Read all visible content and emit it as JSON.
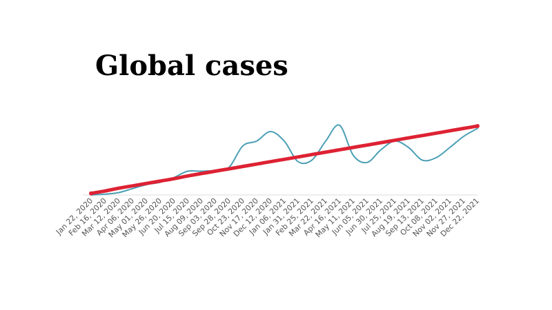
{
  "chart_data": {
    "type": "line",
    "title": "Global cases",
    "xlabel": "",
    "ylabel": "",
    "grid": false,
    "legend": "none",
    "y_axis_visible": false,
    "ylim": [
      0,
      100
    ],
    "categories": [
      "Jan 22, 2020",
      "Feb 16, 2020",
      "Mar 12, 2020",
      "Apr 06, 2020",
      "May 01, 2020",
      "May 26, 2020",
      "Jun 20, 2020",
      "Jul 15, 2020",
      "Aug 09, 2020",
      "Sep 03, 2020",
      "Sep 28, 2020",
      "Oct 23, 2020",
      "Nov 17, 2020",
      "Dec 12, 2020",
      "Jan 06, 2021",
      "Jan 31, 2021",
      "Feb 25, 2021",
      "Mar 22, 2021",
      "Apr 16, 2021",
      "May 11, 2021",
      "Jun 05, 2021",
      "Jun 30, 2021",
      "Jul 25, 2021",
      "Aug 19, 2021",
      "Sep 13, 2021",
      "Oct 08, 2021",
      "Nov 02, 2021",
      "Nov 27, 2021",
      "Dec 22, 2021"
    ],
    "series": [
      {
        "color": "#4a9fb5",
        "values": [
          0,
          1,
          3,
          8,
          13,
          16,
          22,
          30,
          30,
          31,
          35,
          62,
          68,
          80,
          68,
          42,
          44,
          68,
          88,
          50,
          41,
          57,
          68,
          60,
          44,
          47,
          60,
          74,
          84
        ]
      },
      {
        "color": "#dd2233",
        "values": [
          2,
          5,
          8.5,
          11.5,
          14.5,
          17.5,
          20.5,
          24,
          27,
          30,
          33,
          36,
          39,
          42,
          45,
          48,
          51,
          54,
          57,
          60,
          63,
          66,
          69,
          72,
          75,
          78,
          81,
          84,
          87
        ]
      }
    ]
  }
}
